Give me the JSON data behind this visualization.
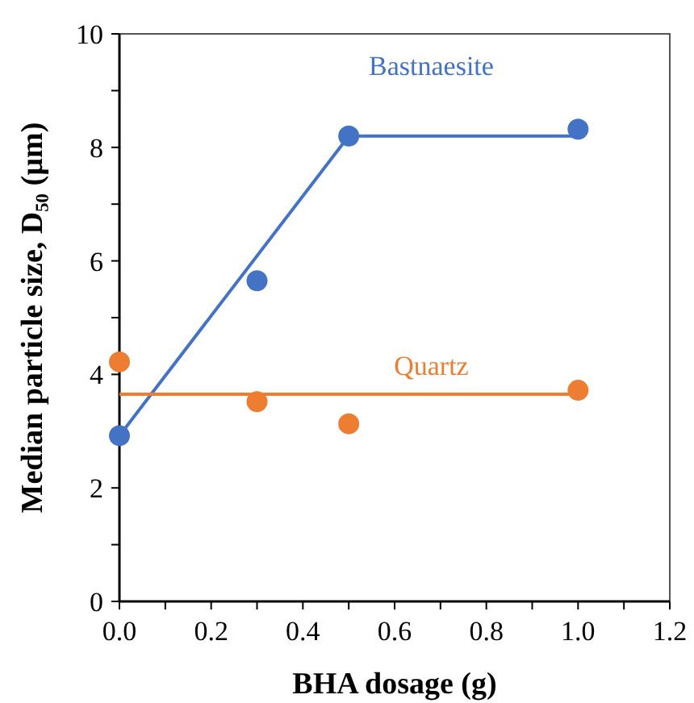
{
  "chart_data": {
    "type": "scatter",
    "xlabel": "BHA dosage (g)",
    "ylabel": "Median particle size, D₅₀ (µm)",
    "xlim": [
      0,
      1.2
    ],
    "xticks": [
      {
        "value": 0,
        "label": "0.0"
      },
      {
        "value": 0.1,
        "label": null
      },
      {
        "value": 0.2,
        "label": "0.2"
      },
      {
        "value": 0.3,
        "label": null
      },
      {
        "value": 0.4,
        "label": "0.4"
      },
      {
        "value": 0.5,
        "label": null
      },
      {
        "value": 0.6,
        "label": "0.6"
      },
      {
        "value": 0.7,
        "label": null
      },
      {
        "value": 0.8,
        "label": "0.8"
      },
      {
        "value": 0.9,
        "label": null
      },
      {
        "value": 1,
        "label": "1.0"
      },
      {
        "value": 1.1,
        "label": null
      },
      {
        "value": 1.2,
        "label": "1.2"
      }
    ],
    "ylim": [
      0,
      10
    ],
    "yticks": [
      0,
      {
        "value": 1,
        "label": null
      },
      2,
      {
        "value": 3,
        "label": null
      },
      4,
      {
        "value": 5,
        "label": null
      },
      6,
      {
        "value": 7,
        "label": null
      },
      8,
      {
        "value": 9,
        "label": null
      },
      10
    ],
    "grid": false,
    "marker": "circle",
    "series": [
      {
        "type": "line",
        "marker": "none",
        "name": "Bastnaesite",
        "color": "#4472c4",
        "x": [
          0,
          0.5,
          1.0
        ],
        "values": [
          2.92,
          8.2,
          8.2
        ]
      },
      {
        "type": "line",
        "marker": "none",
        "name": "Quartz",
        "color": "#ed7d31",
        "x": [
          0,
          1.0
        ],
        "values": [
          3.65,
          3.65
        ]
      },
      {
        "color": "#4472c4",
        "x": [
          0,
          0.3,
          0.5,
          1.0
        ],
        "values": [
          2.92,
          5.65,
          8.2,
          8.32
        ]
      },
      {
        "color": "#ed7d31",
        "x": [
          0,
          0.3,
          0.5,
          1.0
        ],
        "values": [
          4.22,
          3.52,
          3.13,
          3.72
        ]
      }
    ]
  }
}
